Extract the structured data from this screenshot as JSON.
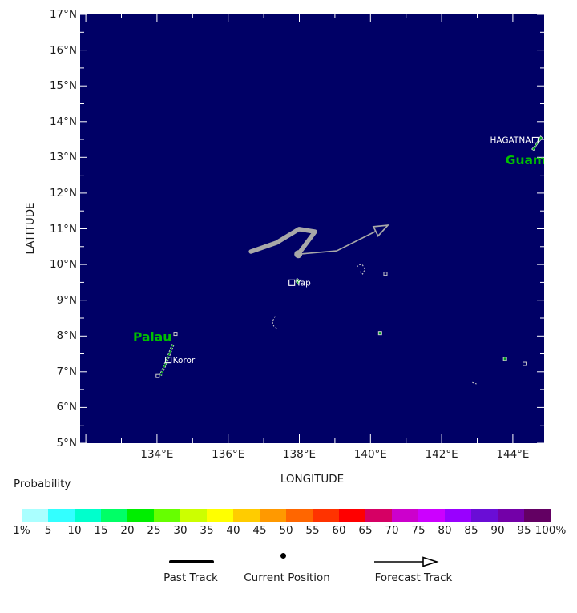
{
  "map": {
    "background": "#000066",
    "tick_color": "#ffffff",
    "axes": {
      "x_title": "LONGITUDE",
      "y_title": "LATITUDE",
      "lon_min": 131.84,
      "lon_max": 144.88,
      "lat_min": 5,
      "lat_max": 17,
      "x_ticks": [
        {
          "label": "134°E",
          "value": 134
        },
        {
          "label": "136°E",
          "value": 136
        },
        {
          "label": "138°E",
          "value": 138
        },
        {
          "label": "140°E",
          "value": 140
        },
        {
          "label": "142°E",
          "value": 142
        },
        {
          "label": "144°E",
          "value": 144
        }
      ],
      "y_ticks": [
        {
          "label": "17°N",
          "value": 17
        },
        {
          "label": "16°N",
          "value": 16
        },
        {
          "label": "15°N",
          "value": 15
        },
        {
          "label": "14°N",
          "value": 14
        },
        {
          "label": "13°N",
          "value": 13
        },
        {
          "label": "12°N",
          "value": 12
        },
        {
          "label": "11°N",
          "value": 11
        },
        {
          "label": "10°N",
          "value": 10
        },
        {
          "label": "9°N",
          "value": 9
        },
        {
          "label": "8°N",
          "value": 8
        },
        {
          "label": "7°N",
          "value": 7
        },
        {
          "label": "6°N",
          "value": 6
        },
        {
          "label": "5°N",
          "value": 5
        }
      ]
    },
    "track": {
      "color": "#a8a8a8",
      "past": [
        [
          136.64,
          10.36
        ],
        [
          137.36,
          10.61
        ],
        [
          137.99,
          10.99
        ],
        [
          138.44,
          10.92
        ],
        [
          137.97,
          10.29
        ]
      ],
      "current": [
        137.97,
        10.29
      ],
      "forecast": [
        [
          137.97,
          10.29
        ],
        [
          139.05,
          10.38
        ],
        [
          140.49,
          11.1
        ]
      ]
    },
    "islands": [
      {
        "kind": "land",
        "closed": true,
        "pts": [
          [
            144.78,
            13.6
          ],
          [
            144.84,
            13.54
          ],
          [
            144.73,
            13.42
          ],
          [
            144.66,
            13.32
          ],
          [
            144.59,
            13.19
          ],
          [
            144.53,
            13.23
          ],
          [
            144.62,
            13.33
          ],
          [
            144.7,
            13.46
          ]
        ]
      },
      {
        "kind": "chain",
        "pts": [
          [
            134.45,
            7.76
          ],
          [
            134.38,
            7.58
          ],
          [
            134.33,
            7.45
          ],
          [
            134.28,
            7.32
          ],
          [
            134.18,
            7.08
          ],
          [
            134.1,
            6.9
          ]
        ]
      },
      {
        "kind": "outline",
        "pts": [
          [
            134.52,
            8.06
          ]
        ]
      },
      {
        "kind": "outline",
        "pts": [
          [
            134.02,
            6.88
          ]
        ]
      },
      {
        "kind": "land",
        "closed": true,
        "pts": [
          [
            137.93,
            9.62
          ],
          [
            138.01,
            9.55
          ],
          [
            137.97,
            9.44
          ],
          [
            137.9,
            9.52
          ]
        ]
      },
      {
        "kind": "outline",
        "pts": [
          [
            139.62,
            9.93
          ],
          [
            139.68,
            10.0
          ],
          [
            139.78,
            9.98
          ],
          [
            139.84,
            9.86
          ],
          [
            139.78,
            9.73
          ],
          [
            139.7,
            9.8
          ]
        ]
      },
      {
        "kind": "outline",
        "pts": [
          [
            140.42,
            9.74
          ]
        ]
      },
      {
        "kind": "outline",
        "pts": [
          [
            137.32,
            8.55
          ],
          [
            137.24,
            8.4
          ],
          [
            137.28,
            8.28
          ],
          [
            137.38,
            8.2
          ]
        ]
      },
      {
        "kind": "land",
        "pts": [
          [
            140.27,
            8.08
          ]
        ]
      },
      {
        "kind": "land",
        "pts": [
          [
            143.78,
            7.36
          ]
        ]
      },
      {
        "kind": "outline",
        "pts": [
          [
            144.33,
            7.22
          ]
        ]
      },
      {
        "kind": "outline",
        "pts": [
          [
            142.86,
            6.7
          ],
          [
            142.98,
            6.66
          ]
        ]
      }
    ],
    "cities": [
      {
        "name": "HAGATNA",
        "lon": 144.63,
        "lat": 13.48,
        "label_side": "left"
      },
      {
        "name": "Yap",
        "lon": 137.79,
        "lat": 9.49,
        "label_side": "right"
      },
      {
        "name": "Koror",
        "lon": 134.32,
        "lat": 7.33,
        "label_side": "right"
      }
    ],
    "region_labels": [
      {
        "text": "Guam",
        "lon": 144.36,
        "lat": 12.92,
        "color": "#00c000"
      },
      {
        "text": "Palau",
        "lon": 133.87,
        "lat": 7.97,
        "color": "#00c000"
      }
    ],
    "land_color": "#00a020",
    "city_text_color": "#ffffff"
  },
  "colorbar": {
    "title": "Probability",
    "labels": [
      "1%",
      "5",
      "10",
      "15",
      "20",
      "25",
      "30",
      "35",
      "40",
      "45",
      "50",
      "55",
      "60",
      "65",
      "70",
      "75",
      "80",
      "85",
      "90",
      "95",
      "100%"
    ],
    "colors": [
      "#aaffff",
      "#33ffff",
      "#00ffcc",
      "#00ff66",
      "#00ee00",
      "#66ff00",
      "#ccff00",
      "#ffff00",
      "#ffcc00",
      "#ff9900",
      "#ff6600",
      "#ff3300",
      "#ff0000",
      "#d60064",
      "#cc00cc",
      "#cc00ff",
      "#9900ff",
      "#6a0dd6",
      "#7300a8",
      "#630063"
    ]
  },
  "legend": {
    "past_label": "Past Track",
    "current_label": "Current Position",
    "forecast_label": "Forecast Track"
  }
}
